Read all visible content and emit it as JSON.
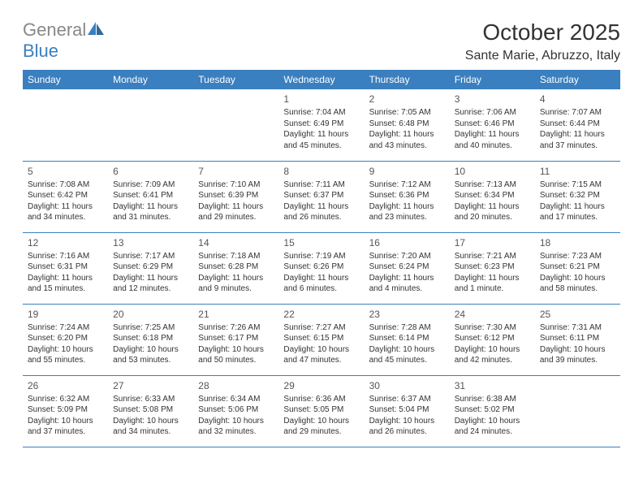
{
  "logo": {
    "text1": "General",
    "text2": "Blue"
  },
  "title": "October 2025",
  "location": "Sante Marie, Abruzzo, Italy",
  "colors": {
    "header_bg": "#3a7fbf",
    "header_text": "#ffffff",
    "border": "#3a7fbf",
    "body_text": "#333333",
    "logo_grey": "#888888",
    "logo_blue": "#3a7fbf",
    "background": "#ffffff"
  },
  "days": [
    "Sunday",
    "Monday",
    "Tuesday",
    "Wednesday",
    "Thursday",
    "Friday",
    "Saturday"
  ],
  "weeks": [
    [
      null,
      null,
      null,
      {
        "n": "1",
        "sr": "Sunrise: 7:04 AM",
        "ss": "Sunset: 6:49 PM",
        "d1": "Daylight: 11 hours",
        "d2": "and 45 minutes."
      },
      {
        "n": "2",
        "sr": "Sunrise: 7:05 AM",
        "ss": "Sunset: 6:48 PM",
        "d1": "Daylight: 11 hours",
        "d2": "and 43 minutes."
      },
      {
        "n": "3",
        "sr": "Sunrise: 7:06 AM",
        "ss": "Sunset: 6:46 PM",
        "d1": "Daylight: 11 hours",
        "d2": "and 40 minutes."
      },
      {
        "n": "4",
        "sr": "Sunrise: 7:07 AM",
        "ss": "Sunset: 6:44 PM",
        "d1": "Daylight: 11 hours",
        "d2": "and 37 minutes."
      }
    ],
    [
      {
        "n": "5",
        "sr": "Sunrise: 7:08 AM",
        "ss": "Sunset: 6:42 PM",
        "d1": "Daylight: 11 hours",
        "d2": "and 34 minutes."
      },
      {
        "n": "6",
        "sr": "Sunrise: 7:09 AM",
        "ss": "Sunset: 6:41 PM",
        "d1": "Daylight: 11 hours",
        "d2": "and 31 minutes."
      },
      {
        "n": "7",
        "sr": "Sunrise: 7:10 AM",
        "ss": "Sunset: 6:39 PM",
        "d1": "Daylight: 11 hours",
        "d2": "and 29 minutes."
      },
      {
        "n": "8",
        "sr": "Sunrise: 7:11 AM",
        "ss": "Sunset: 6:37 PM",
        "d1": "Daylight: 11 hours",
        "d2": "and 26 minutes."
      },
      {
        "n": "9",
        "sr": "Sunrise: 7:12 AM",
        "ss": "Sunset: 6:36 PM",
        "d1": "Daylight: 11 hours",
        "d2": "and 23 minutes."
      },
      {
        "n": "10",
        "sr": "Sunrise: 7:13 AM",
        "ss": "Sunset: 6:34 PM",
        "d1": "Daylight: 11 hours",
        "d2": "and 20 minutes."
      },
      {
        "n": "11",
        "sr": "Sunrise: 7:15 AM",
        "ss": "Sunset: 6:32 PM",
        "d1": "Daylight: 11 hours",
        "d2": "and 17 minutes."
      }
    ],
    [
      {
        "n": "12",
        "sr": "Sunrise: 7:16 AM",
        "ss": "Sunset: 6:31 PM",
        "d1": "Daylight: 11 hours",
        "d2": "and 15 minutes."
      },
      {
        "n": "13",
        "sr": "Sunrise: 7:17 AM",
        "ss": "Sunset: 6:29 PM",
        "d1": "Daylight: 11 hours",
        "d2": "and 12 minutes."
      },
      {
        "n": "14",
        "sr": "Sunrise: 7:18 AM",
        "ss": "Sunset: 6:28 PM",
        "d1": "Daylight: 11 hours",
        "d2": "and 9 minutes."
      },
      {
        "n": "15",
        "sr": "Sunrise: 7:19 AM",
        "ss": "Sunset: 6:26 PM",
        "d1": "Daylight: 11 hours",
        "d2": "and 6 minutes."
      },
      {
        "n": "16",
        "sr": "Sunrise: 7:20 AM",
        "ss": "Sunset: 6:24 PM",
        "d1": "Daylight: 11 hours",
        "d2": "and 4 minutes."
      },
      {
        "n": "17",
        "sr": "Sunrise: 7:21 AM",
        "ss": "Sunset: 6:23 PM",
        "d1": "Daylight: 11 hours",
        "d2": "and 1 minute."
      },
      {
        "n": "18",
        "sr": "Sunrise: 7:23 AM",
        "ss": "Sunset: 6:21 PM",
        "d1": "Daylight: 10 hours",
        "d2": "and 58 minutes."
      }
    ],
    [
      {
        "n": "19",
        "sr": "Sunrise: 7:24 AM",
        "ss": "Sunset: 6:20 PM",
        "d1": "Daylight: 10 hours",
        "d2": "and 55 minutes."
      },
      {
        "n": "20",
        "sr": "Sunrise: 7:25 AM",
        "ss": "Sunset: 6:18 PM",
        "d1": "Daylight: 10 hours",
        "d2": "and 53 minutes."
      },
      {
        "n": "21",
        "sr": "Sunrise: 7:26 AM",
        "ss": "Sunset: 6:17 PM",
        "d1": "Daylight: 10 hours",
        "d2": "and 50 minutes."
      },
      {
        "n": "22",
        "sr": "Sunrise: 7:27 AM",
        "ss": "Sunset: 6:15 PM",
        "d1": "Daylight: 10 hours",
        "d2": "and 47 minutes."
      },
      {
        "n": "23",
        "sr": "Sunrise: 7:28 AM",
        "ss": "Sunset: 6:14 PM",
        "d1": "Daylight: 10 hours",
        "d2": "and 45 minutes."
      },
      {
        "n": "24",
        "sr": "Sunrise: 7:30 AM",
        "ss": "Sunset: 6:12 PM",
        "d1": "Daylight: 10 hours",
        "d2": "and 42 minutes."
      },
      {
        "n": "25",
        "sr": "Sunrise: 7:31 AM",
        "ss": "Sunset: 6:11 PM",
        "d1": "Daylight: 10 hours",
        "d2": "and 39 minutes."
      }
    ],
    [
      {
        "n": "26",
        "sr": "Sunrise: 6:32 AM",
        "ss": "Sunset: 5:09 PM",
        "d1": "Daylight: 10 hours",
        "d2": "and 37 minutes."
      },
      {
        "n": "27",
        "sr": "Sunrise: 6:33 AM",
        "ss": "Sunset: 5:08 PM",
        "d1": "Daylight: 10 hours",
        "d2": "and 34 minutes."
      },
      {
        "n": "28",
        "sr": "Sunrise: 6:34 AM",
        "ss": "Sunset: 5:06 PM",
        "d1": "Daylight: 10 hours",
        "d2": "and 32 minutes."
      },
      {
        "n": "29",
        "sr": "Sunrise: 6:36 AM",
        "ss": "Sunset: 5:05 PM",
        "d1": "Daylight: 10 hours",
        "d2": "and 29 minutes."
      },
      {
        "n": "30",
        "sr": "Sunrise: 6:37 AM",
        "ss": "Sunset: 5:04 PM",
        "d1": "Daylight: 10 hours",
        "d2": "and 26 minutes."
      },
      {
        "n": "31",
        "sr": "Sunrise: 6:38 AM",
        "ss": "Sunset: 5:02 PM",
        "d1": "Daylight: 10 hours",
        "d2": "and 24 minutes."
      },
      null
    ]
  ]
}
